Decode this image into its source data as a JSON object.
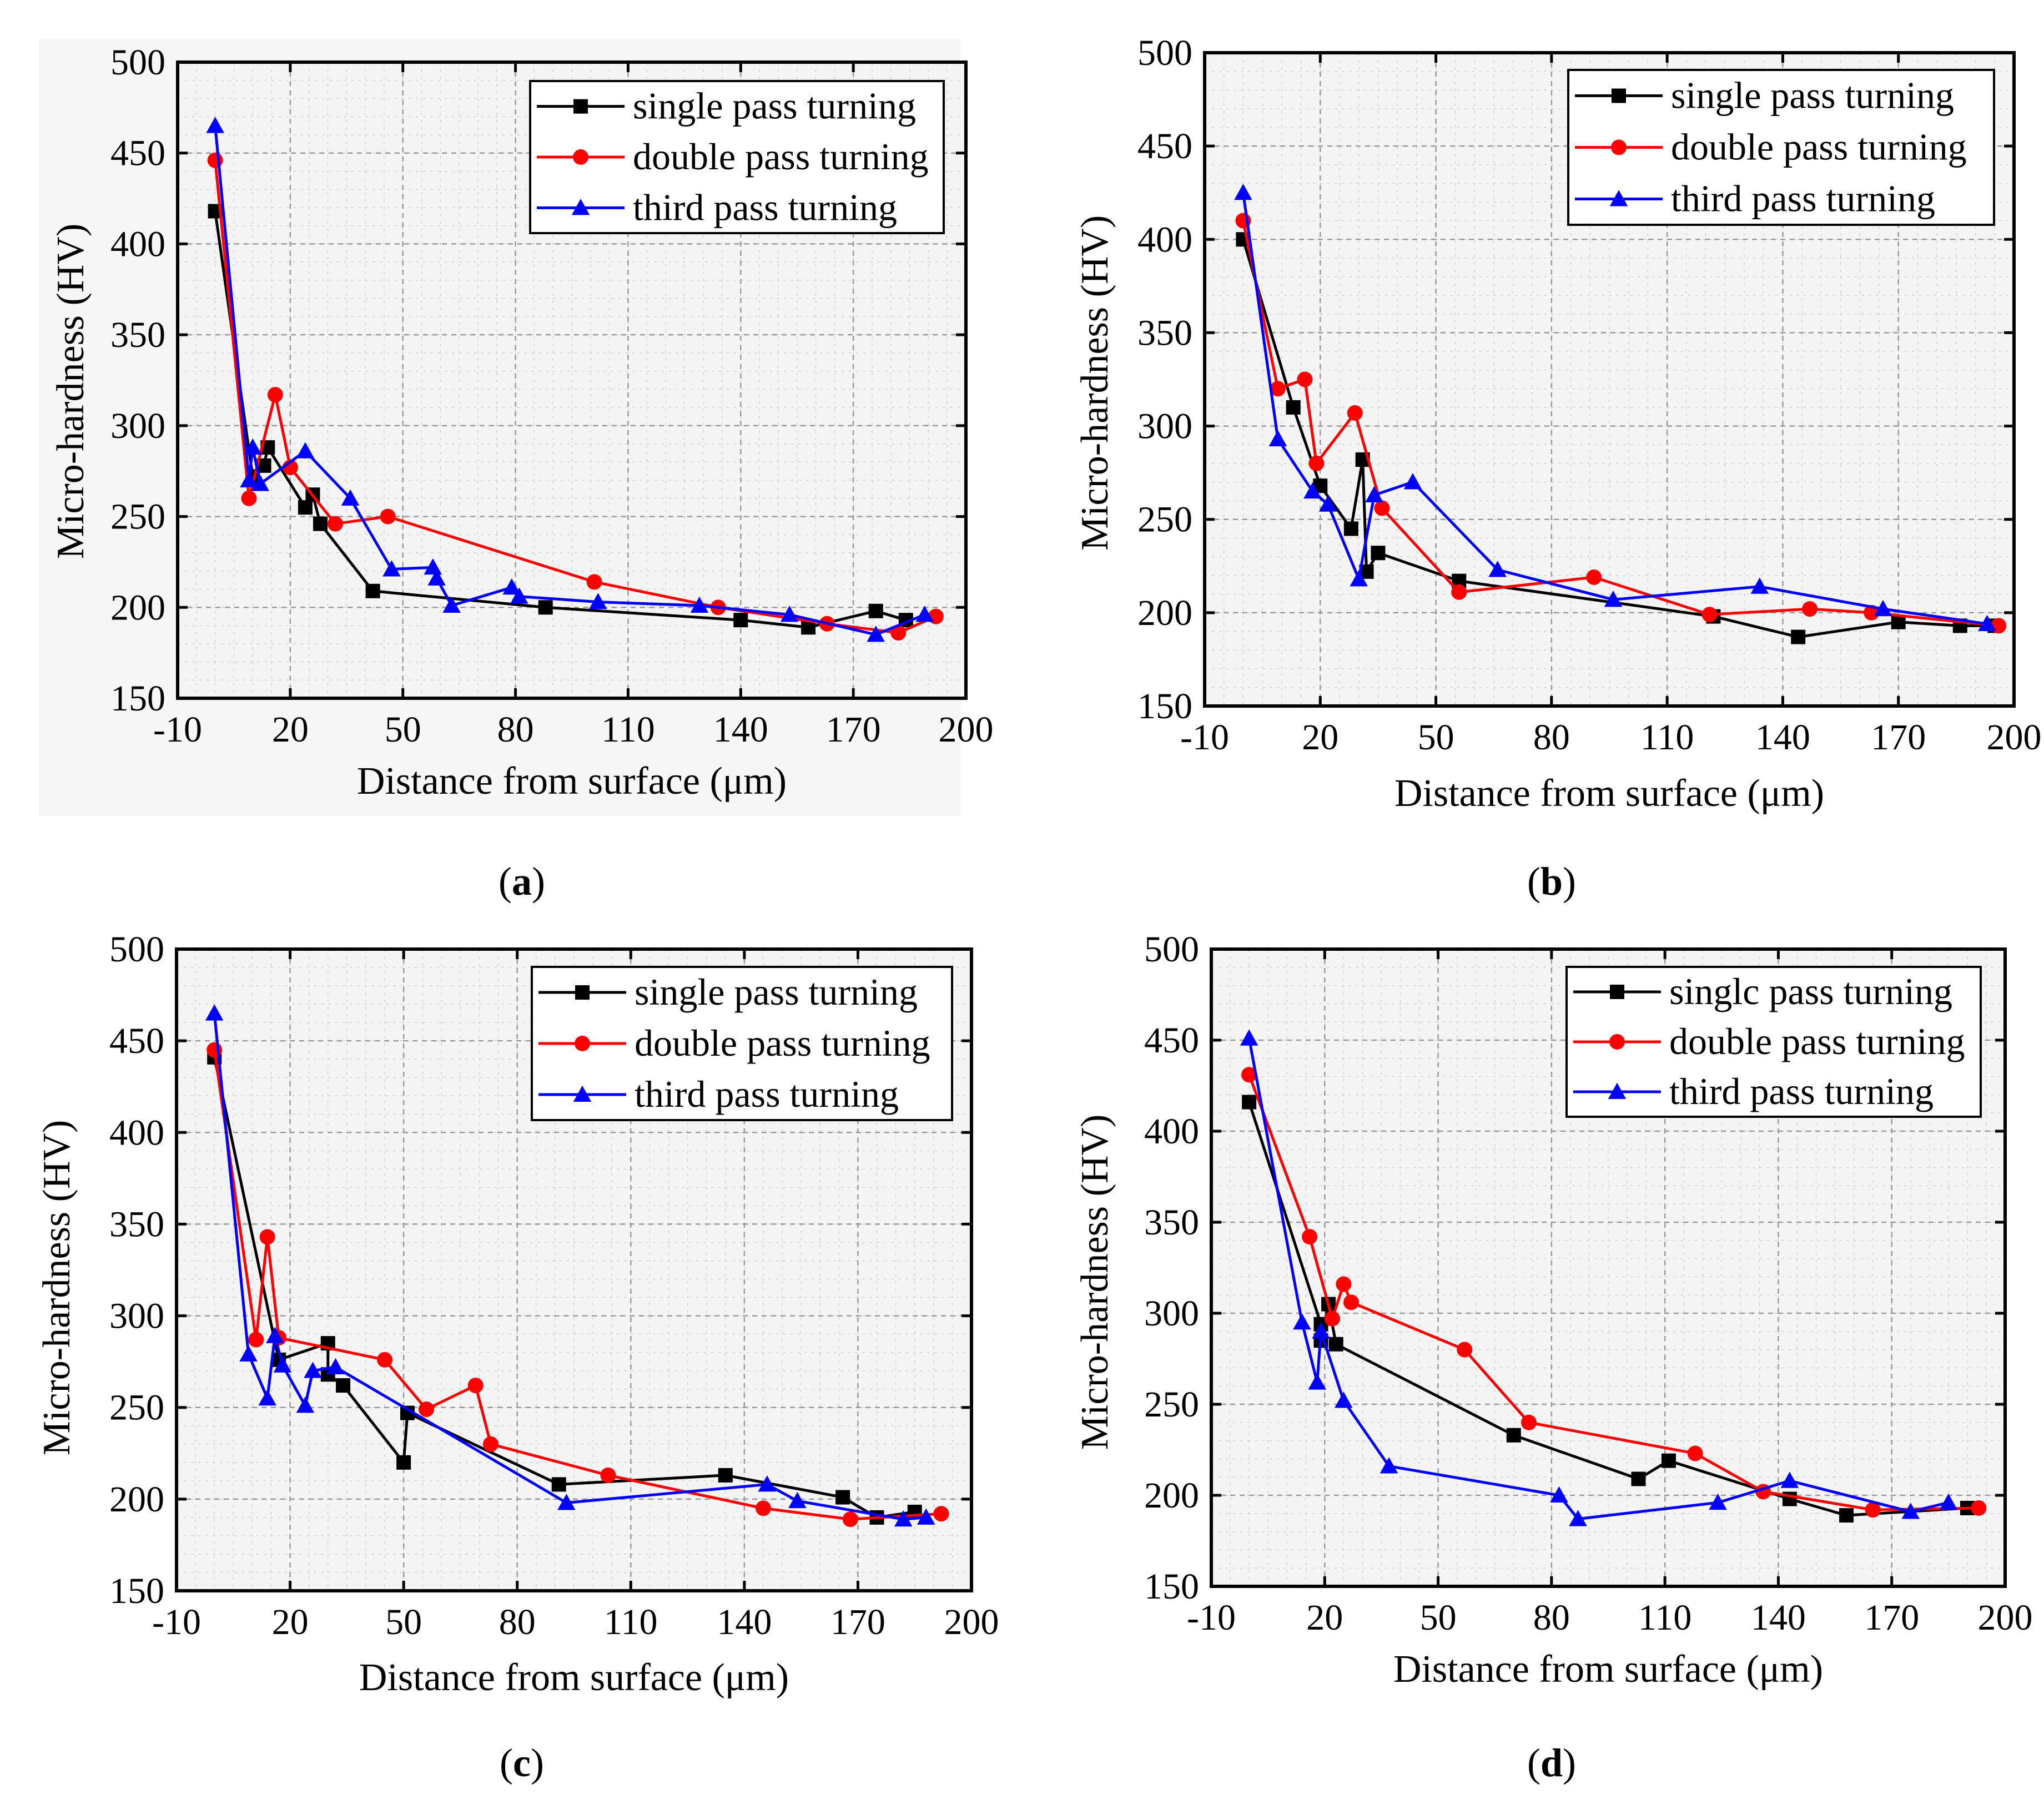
{
  "figure": {
    "captions": [
      "(a)",
      "(b)",
      "(c)",
      "(d)"
    ]
  },
  "colors": {
    "single": "#000000",
    "double": "#ff0000",
    "third": "#0000ff"
  },
  "chart_data": [
    {
      "type": "line",
      "panel": "a",
      "caption": "(a)",
      "xlabel": "Distance from surface (μm)",
      "ylabel": "Micro-hardness (HV)",
      "xlim": [
        -10,
        200
      ],
      "ylim": [
        150,
        500
      ],
      "xticks": [
        -10,
        20,
        50,
        80,
        110,
        140,
        170,
        200
      ],
      "yticks": [
        150,
        200,
        250,
        300,
        350,
        400,
        450,
        500
      ],
      "grid": true,
      "legend": "top-right",
      "series": [
        {
          "name": "single pass turning",
          "color": "#000000",
          "marker": "square",
          "points": [
            [
              0,
              418
            ],
            [
              10,
              272
            ],
            [
              13,
              278
            ],
            [
              14,
              288
            ],
            [
              24,
              255
            ],
            [
              26,
              262
            ],
            [
              28,
              246
            ],
            [
              42,
              209
            ],
            [
              88,
              200
            ],
            [
              140,
              193
            ],
            [
              158,
              189
            ],
            [
              176,
              198
            ],
            [
              184,
              193
            ]
          ]
        },
        {
          "name": "double pass turning",
          "color": "#ff0000",
          "marker": "circle",
          "points": [
            [
              0,
              446
            ],
            [
              9,
              260
            ],
            [
              16,
              317
            ],
            [
              20,
              277
            ],
            [
              32,
              246
            ],
            [
              46,
              250
            ],
            [
              101,
              214
            ],
            [
              134,
              200
            ],
            [
              163,
              191
            ],
            [
              182,
              186
            ],
            [
              192,
              195
            ]
          ]
        },
        {
          "name": "third pass turning",
          "color": "#0000ff",
          "marker": "triangle",
          "points": [
            [
              0,
              465
            ],
            [
              9,
              270
            ],
            [
              10,
              288
            ],
            [
              12,
              268
            ],
            [
              24,
              286
            ],
            [
              36,
              260
            ],
            [
              47,
              221
            ],
            [
              58,
              222
            ],
            [
              59,
              216
            ],
            [
              63,
              201
            ],
            [
              79,
              211
            ],
            [
              81,
              206
            ],
            [
              102,
              203
            ],
            [
              129,
              201
            ],
            [
              153,
              196
            ],
            [
              176,
              185
            ],
            [
              189,
              196
            ]
          ]
        }
      ]
    },
    {
      "type": "line",
      "panel": "b",
      "caption": "(b)",
      "xlabel": "Distance from surface (μm)",
      "ylabel": "Micro-hardness (HV)",
      "xlim": [
        -10,
        200
      ],
      "ylim": [
        150,
        500
      ],
      "xticks": [
        -10,
        20,
        50,
        80,
        110,
        140,
        170,
        200
      ],
      "yticks": [
        150,
        200,
        250,
        300,
        350,
        400,
        450,
        500
      ],
      "grid": true,
      "legend": "top-right",
      "series": [
        {
          "name": "single pass turning",
          "color": "#000000",
          "marker": "square",
          "points": [
            [
              0,
              400
            ],
            [
              13,
              310
            ],
            [
              20,
              268
            ],
            [
              28,
              245
            ],
            [
              31,
              282
            ],
            [
              32,
              222
            ],
            [
              35,
              232
            ],
            [
              56,
              217
            ],
            [
              122,
              198
            ],
            [
              144,
              187
            ],
            [
              170,
              195
            ],
            [
              186,
              193
            ],
            [
              195,
              193
            ]
          ]
        },
        {
          "name": "double pass turning",
          "color": "#ff0000",
          "marker": "circle",
          "points": [
            [
              0,
              410
            ],
            [
              9,
              320
            ],
            [
              16,
              325
            ],
            [
              19,
              280
            ],
            [
              29,
              307
            ],
            [
              36,
              256
            ],
            [
              56,
              211
            ],
            [
              91,
              219
            ],
            [
              121,
              199
            ],
            [
              147,
              202
            ],
            [
              163,
              200
            ],
            [
              196,
              193
            ]
          ]
        },
        {
          "name": "third pass turning",
          "color": "#0000ff",
          "marker": "triangle",
          "points": [
            [
              0,
              425
            ],
            [
              9,
              293
            ],
            [
              18,
              265
            ],
            [
              22,
              258
            ],
            [
              30,
              218
            ],
            [
              34,
              263
            ],
            [
              44,
              270
            ],
            [
              66,
              223
            ],
            [
              96,
              207
            ],
            [
              134,
              214
            ],
            [
              166,
              202
            ],
            [
              193,
              194
            ]
          ]
        }
      ]
    },
    {
      "type": "line",
      "panel": "c",
      "caption": "(c)",
      "xlabel": "Distance from surface (μm)",
      "ylabel": "Micro-hardness (HV)",
      "xlim": [
        -10,
        200
      ],
      "ylim": [
        150,
        500
      ],
      "xticks": [
        -10,
        20,
        50,
        80,
        110,
        140,
        170,
        200
      ],
      "yticks": [
        150,
        200,
        250,
        300,
        350,
        400,
        450,
        500
      ],
      "grid": true,
      "legend": "top-right",
      "series": [
        {
          "name": "single pass turning",
          "color": "#000000",
          "marker": "square",
          "points": [
            [
              0,
              441
            ],
            [
              17,
              276
            ],
            [
              30,
              285
            ],
            [
              30,
              268
            ],
            [
              34,
              262
            ],
            [
              50,
              220
            ],
            [
              51,
              247
            ],
            [
              91,
              208
            ],
            [
              135,
              213
            ],
            [
              166,
              201
            ],
            [
              175,
              190
            ],
            [
              185,
              193
            ]
          ]
        },
        {
          "name": "double pass turning",
          "color": "#ff0000",
          "marker": "circle",
          "points": [
            [
              0,
              445
            ],
            [
              11,
              287
            ],
            [
              14,
              343
            ],
            [
              17,
              288
            ],
            [
              45,
              276
            ],
            [
              56,
              249
            ],
            [
              69,
              262
            ],
            [
              73,
              230
            ],
            [
              104,
              213
            ],
            [
              145,
              195
            ],
            [
              168,
              189
            ],
            [
              192,
              192
            ]
          ]
        },
        {
          "name": "third pass turning",
          "color": "#0000ff",
          "marker": "triangle",
          "points": [
            [
              0,
              465
            ],
            [
              9,
              279
            ],
            [
              14,
              255
            ],
            [
              16,
              289
            ],
            [
              18,
              273
            ],
            [
              24,
              251
            ],
            [
              26,
              270
            ],
            [
              32,
              272
            ],
            [
              93,
              198
            ],
            [
              146,
              208
            ],
            [
              154,
              199
            ],
            [
              182,
              189
            ],
            [
              188,
              190
            ]
          ]
        }
      ]
    },
    {
      "type": "line",
      "panel": "d",
      "caption": "(d)",
      "xlabel": "Distance from surface (μm)",
      "ylabel": "Micro-hardness (HV)",
      "xlim": [
        -10,
        200
      ],
      "ylim": [
        150,
        500
      ],
      "xticks": [
        -10,
        20,
        50,
        80,
        110,
        140,
        170,
        200
      ],
      "yticks": [
        150,
        200,
        250,
        300,
        350,
        400,
        450,
        500
      ],
      "grid": true,
      "legend": "top-right",
      "series": [
        {
          "name": "singlc pass turning",
          "color": "#000000",
          "marker": "square",
          "points": [
            [
              0,
              416
            ],
            [
              19,
              294
            ],
            [
              19,
              285
            ],
            [
              21,
              305
            ],
            [
              23,
              283
            ],
            [
              70,
              233
            ],
            [
              103,
              209
            ],
            [
              111,
              219
            ],
            [
              143,
              198
            ],
            [
              158,
              189
            ],
            [
              190,
              193
            ]
          ]
        },
        {
          "name": "double pass turning",
          "color": "#ff0000",
          "marker": "circle",
          "points": [
            [
              0,
              431
            ],
            [
              16,
              342
            ],
            [
              22,
              297
            ],
            [
              25,
              316
            ],
            [
              27,
              306
            ],
            [
              57,
              280
            ],
            [
              74,
              240
            ],
            [
              118,
              223
            ],
            [
              136,
              202
            ],
            [
              165,
              192
            ],
            [
              193,
              193
            ]
          ]
        },
        {
          "name": "third pass turning",
          "color": "#0000ff",
          "marker": "triangle",
          "points": [
            [
              0,
              451
            ],
            [
              14,
              295
            ],
            [
              18,
              262
            ],
            [
              19,
              290
            ],
            [
              25,
              252
            ],
            [
              37,
              216
            ],
            [
              82,
              200
            ],
            [
              87,
              187
            ],
            [
              124,
              196
            ],
            [
              143,
              208
            ],
            [
              175,
              191
            ],
            [
              185,
              196
            ]
          ]
        }
      ]
    }
  ]
}
